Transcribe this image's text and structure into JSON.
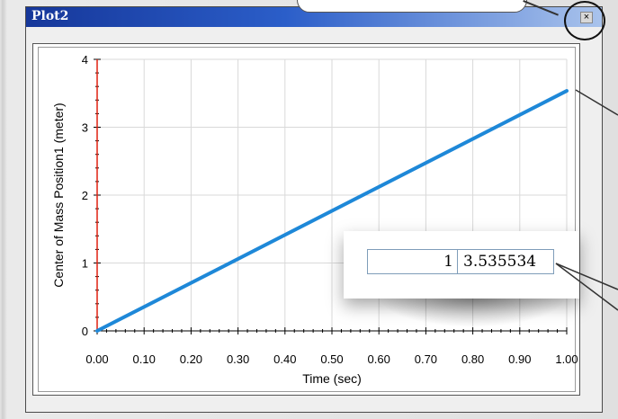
{
  "window": {
    "title": "Plot2",
    "close_glyph": "×"
  },
  "readout": {
    "x_value": "1",
    "y_value": "3.535534"
  },
  "colors": {
    "series": "#1e88d8",
    "y_axis_line": "#e02010",
    "grid": "#d9d9d9"
  },
  "icons": [
    "close-icon"
  ],
  "chart_data": {
    "type": "line",
    "title": "",
    "xlabel": "Time (sec)",
    "ylabel": "Center of Mass Position1 (meter)",
    "xlim": [
      0,
      1
    ],
    "ylim": [
      0,
      4
    ],
    "x_ticks": [
      "0.00",
      "0.10",
      "0.20",
      "0.30",
      "0.40",
      "0.50",
      "0.60",
      "0.70",
      "0.80",
      "0.90",
      "1.00"
    ],
    "y_ticks": [
      "0",
      "1",
      "2",
      "3",
      "4"
    ],
    "grid": true,
    "series": [
      {
        "x": [
          0,
          1
        ],
        "y": [
          0,
          3.535534
        ]
      }
    ]
  }
}
